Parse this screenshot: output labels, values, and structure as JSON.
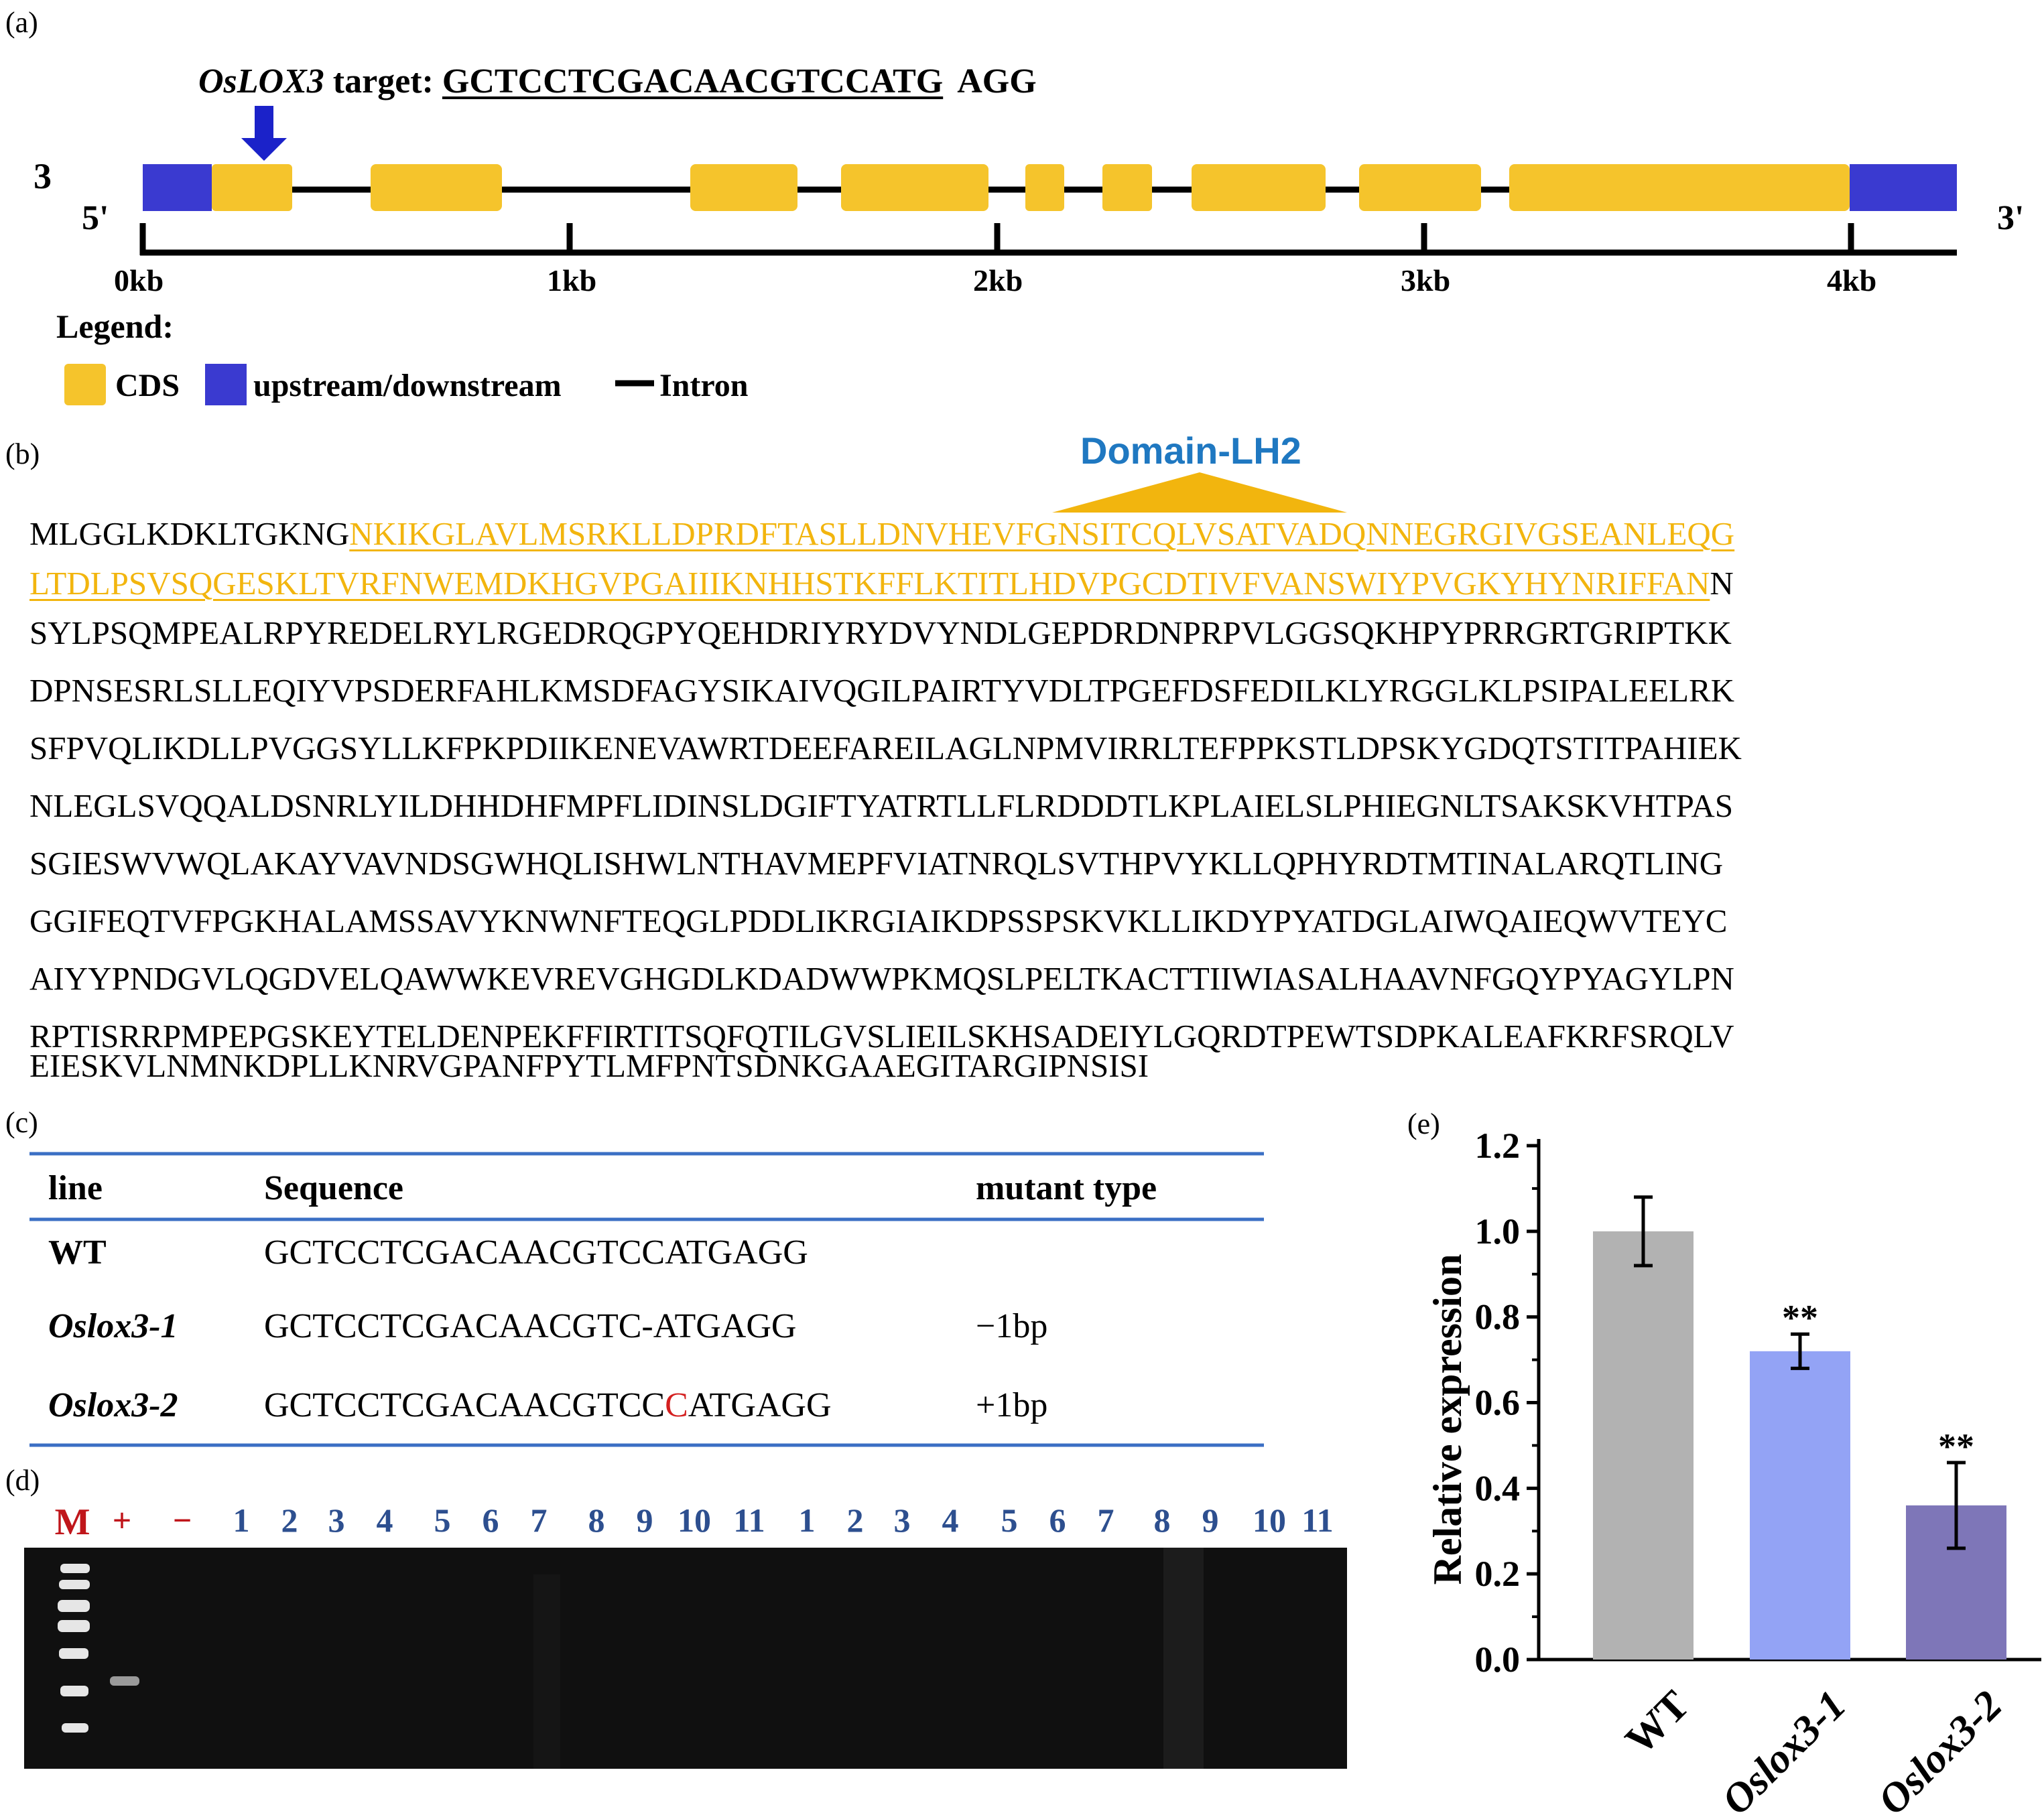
{
  "panel_labels": {
    "a": "(a)",
    "b": "(b)",
    "c": "(c)",
    "d": "(d)",
    "e": "(e)"
  },
  "panel_a": {
    "target_gene": "OsLOX3",
    "target_word": " target: ",
    "target_sequence": "GCTCCTCGACAACGTCCATG",
    "pam": "AGG",
    "side_number": "3",
    "five_prime": "5'",
    "three_prime": "3'",
    "scale_labels": [
      "0kb",
      "1kb",
      "2kb",
      "3kb",
      "4kb"
    ],
    "legend_title": "Legend:",
    "legend_cds": "CDS",
    "legend_updown": "upstream/downstream",
    "legend_intron": "Intron",
    "colors": {
      "cds": "#f5c42c",
      "utr": "#3a3ad0",
      "arrow": "#1b22c9"
    }
  },
  "panel_b": {
    "domain_title": "Domain-LH2",
    "line1_plain": "MLGGLKDKLTGKNG",
    "line1_domain": "NKIKGLAVLMSRKLLDPRDFTASLLDNVHEVFGNSITCQLVSATVADQNNEGRGIVGSEANLEQG",
    "line2_domain": "LTDLPSVSQGESKLTVRFNWEMDKHGVPGAIIIKNHHSTKFFLKTITLHDVPGCDTIVFVANSWIYPVGKYHYNRIFFAN",
    "line2_plain": "N",
    "lines": [
      "SYLPSQMPEALRPYREDELRYLRGEDRQGPYQEHDRIYRYDVYNDLGEPDRDNPRPVLGGSQKHPYPRRGRTGRIPTKK",
      "DPNSESRLSLLEQIYVPSDERFAHLKMSDFAGYSIKAIVQGILPAIRTYVDLTPGEFDSFEDILKLYRGGLKLPSIPALEELRK",
      "SFPVQLIKDLLPVGGSYLLKFPKPDIIKENEVAWRTDEEFAREILAGLNPMVIRRLTEFPPKSTLDPSKYGDQTSTITPAHIEK",
      "NLEGLSVQQALDSNRLYILDHHDHFMPFLIDINSLDGIFTYATRTLLFLRDDDTLKPLAIELSLPHIEGNLTSAKSKVHTPAS",
      "SGIESWVWQLAKAYVAVNDSGWHQLISHWLNTHAVMEPFVIATNRQLSVTHPVYKLLQPHYRDTMTINALARQTLING",
      "GGIFEQTVFPGKHALAMSSAVYKNWNFTEQGLPDDLIKRGIAIKDPSSPSKVKLLIKDYPYATDGLAIWQAIEQWVTEYC",
      "AIYYPNDGVLQGDVELQAWWKEVREVGHGDLKDADWWPKMQSLPELTKACTTIIWIASALHAAVNFGQYPYAGYLPN",
      "RPTISRRPMPEPGSKEYTELDENPEKFFIRTITSQFQTILGVSLIEILSKHSADEIYLGQRDTPEWTSDPKALEAFKRFSRQLV",
      "EIESKVLNMNKDPLLKNRVGPANFPYTLMFPNTSDNKGAAEGITARGIPNSISI"
    ]
  },
  "panel_c": {
    "headers": [
      "line",
      "Sequence",
      "mutant type"
    ],
    "rows": [
      {
        "line": "WT",
        "seq_a": "GCTCCTCGACAACGTCCATGAGG",
        "seq_ins": "",
        "seq_b": "",
        "type": ""
      },
      {
        "line": "Oslox3-1",
        "seq_a": "GCTCCTCGACAACGTC-ATGAGG",
        "seq_ins": "",
        "seq_b": "",
        "type": "−1bp"
      },
      {
        "line": "Oslox3-2",
        "seq_a": "GCTCCTCGACAACGTCC",
        "seq_ins": "C",
        "seq_b": "ATGAGG",
        "type": "+1bp"
      }
    ],
    "colors": {
      "rule": "#3b6fc4",
      "insert": "#d42020"
    }
  },
  "panel_d": {
    "marker": "M",
    "plus": "+",
    "minus": "−",
    "lanes": [
      "1",
      "2",
      "3",
      "4",
      "5",
      "6",
      "7",
      "8",
      "9",
      "10",
      "11",
      "1",
      "2",
      "3",
      "4",
      "5",
      "6",
      "7",
      "8",
      "9",
      "10",
      "11"
    ],
    "colors": {
      "marker": "#c0161b",
      "lane": "#2d4f8f"
    }
  },
  "chart_data": {
    "type": "bar",
    "categories": [
      "WT",
      "Oslox3-1",
      "Oslox3-2"
    ],
    "values": [
      1.0,
      0.72,
      0.36
    ],
    "errors": [
      0.08,
      0.04,
      0.1
    ],
    "significance": [
      "",
      "**",
      "**"
    ],
    "ylabel": "Relative expression",
    "ylim": [
      0.0,
      1.2
    ],
    "yticks": [
      "0.0",
      "0.2",
      "0.4",
      "0.6",
      "0.8",
      "1.0",
      "1.2"
    ],
    "colors": [
      "#b2b2b2",
      "#93a3f5",
      "#7e76b8"
    ]
  }
}
